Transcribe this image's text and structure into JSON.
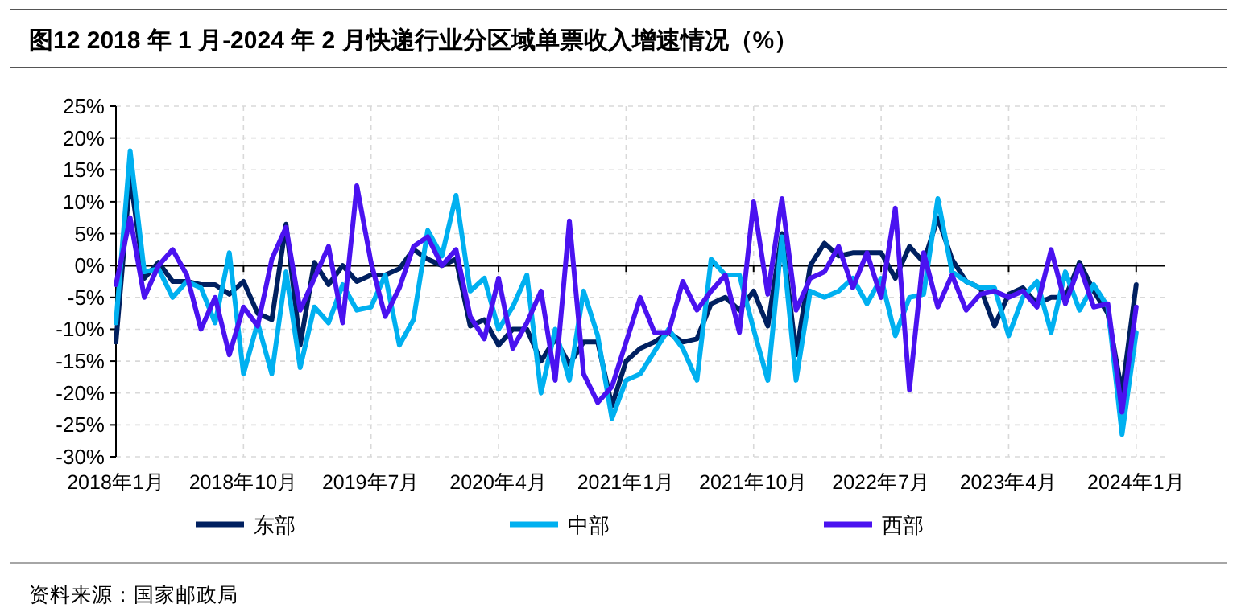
{
  "chart_data": {
    "type": "line",
    "title": "图12 2018 年 1 月-2024 年 2 月快递行业分区域单票收入增速情况（%）",
    "x": [
      "2018-01",
      "2018-02",
      "2018-03",
      "2018-04",
      "2018-05",
      "2018-06",
      "2018-07",
      "2018-08",
      "2018-09",
      "2018-10",
      "2018-11",
      "2018-12",
      "2019-01",
      "2019-02",
      "2019-03",
      "2019-04",
      "2019-05",
      "2019-06",
      "2019-07",
      "2019-08",
      "2019-09",
      "2019-10",
      "2019-11",
      "2019-12",
      "2020-01",
      "2020-02",
      "2020-03",
      "2020-04",
      "2020-05",
      "2020-06",
      "2020-07",
      "2020-08",
      "2020-09",
      "2020-10",
      "2020-11",
      "2020-12",
      "2021-01",
      "2021-02",
      "2021-03",
      "2021-04",
      "2021-05",
      "2021-06",
      "2021-07",
      "2021-08",
      "2021-09",
      "2021-10",
      "2021-11",
      "2021-12",
      "2022-01",
      "2022-02",
      "2022-03",
      "2022-04",
      "2022-05",
      "2022-06",
      "2022-07",
      "2022-08",
      "2022-09",
      "2022-10",
      "2022-11",
      "2022-12",
      "2023-01",
      "2023-02",
      "2023-03",
      "2023-04",
      "2023-05",
      "2023-06",
      "2023-07",
      "2023-08",
      "2023-09",
      "2023-10",
      "2023-11",
      "2023-12",
      "2024-01"
    ],
    "series": [
      {
        "name": "东部",
        "color": "#002060",
        "values": [
          -12,
          14,
          -2,
          0.5,
          -2.5,
          -2.5,
          -3,
          -3,
          -4.5,
          -2.5,
          -7.5,
          -8.5,
          6.5,
          -12.5,
          0.5,
          -3,
          0,
          -2.5,
          -1.5,
          -1.5,
          -0.5,
          2.5,
          1,
          0,
          1,
          -9.5,
          -8.5,
          -12.5,
          -10,
          -10,
          -15,
          -11.5,
          -15.5,
          -12,
          -12,
          -22,
          -15,
          -13,
          -12,
          -10.5,
          -12,
          -11.5,
          -6,
          -5,
          -7,
          -4,
          -9.5,
          5,
          -14,
          0,
          3.5,
          1.5,
          2,
          2,
          2,
          -2,
          3,
          0.5,
          7.5,
          1,
          -2.5,
          -3.5,
          -9.5,
          -4.5,
          -3.5,
          -6,
          -5,
          -5,
          0.5,
          -4,
          -7.5,
          -20,
          -3
        ]
      },
      {
        "name": "中部",
        "color": "#00b0f0",
        "values": [
          -9,
          18,
          -1,
          -0.5,
          -5,
          -2.5,
          -3.5,
          -9,
          2,
          -17,
          -9,
          -17,
          -1,
          -16,
          -6.5,
          -9,
          -3,
          -7,
          -6.5,
          -1.5,
          -12.5,
          -8.5,
          5.5,
          1.5,
          11,
          -4,
          -2,
          -10,
          -6.5,
          -1.5,
          -20,
          -10,
          -18,
          -4,
          -11,
          -24,
          -18,
          -17,
          -13.5,
          -10,
          -13,
          -18,
          1,
          -1.5,
          -1.5,
          -10,
          -18,
          4.5,
          -18,
          -4,
          -5,
          -4,
          -2,
          -6,
          -2,
          -11,
          -5,
          -4.5,
          10.5,
          -1,
          -2.5,
          -3.5,
          -3.5,
          -11,
          -5,
          -2.5,
          -10.5,
          -1,
          -7,
          -3,
          -6.5,
          -26.5,
          -10.5
        ]
      },
      {
        "name": "西部",
        "color": "#4a12f0",
        "values": [
          -3,
          7.5,
          -5,
          0,
          2.5,
          -1.5,
          -10,
          -5,
          -14,
          -6.5,
          -9.5,
          1,
          6,
          -7,
          -2,
          3,
          -9,
          12.5,
          0.5,
          -8,
          -3.5,
          3,
          4.5,
          0,
          2.5,
          -8,
          -11.5,
          -2,
          -13,
          -9,
          -4,
          -18,
          7,
          -17,
          -21.5,
          -19,
          -12,
          -5,
          -10.5,
          -10.5,
          -2.5,
          -7,
          -4,
          -1.5,
          -10.5,
          10,
          -4.5,
          10.5,
          -7,
          -2,
          -1,
          3,
          -3.5,
          2,
          -5,
          9,
          -19.5,
          2,
          -6.5,
          -1.5,
          -7,
          -4.5,
          -4,
          -5,
          -4,
          -6.5,
          2.5,
          -6,
          0,
          -6.5,
          -6,
          -23,
          -6.5
        ]
      }
    ],
    "xlim": [
      "2018-01",
      "2024-03"
    ],
    "xticks": [
      {
        "value": "2018-01",
        "label": "2018年1月"
      },
      {
        "value": "2018-10",
        "label": "2018年10月"
      },
      {
        "value": "2019-07",
        "label": "2019年7月"
      },
      {
        "value": "2020-04",
        "label": "2020年4月"
      },
      {
        "value": "2021-01",
        "label": "2021年1月"
      },
      {
        "value": "2021-10",
        "label": "2021年10月"
      },
      {
        "value": "2022-07",
        "label": "2022年7月"
      },
      {
        "value": "2023-04",
        "label": "2023年4月"
      },
      {
        "value": "2024-01",
        "label": "2024年1月"
      }
    ],
    "ylim": [
      -30,
      25
    ],
    "yticks": [
      {
        "value": -30,
        "label": "-30%"
      },
      {
        "value": -25,
        "label": "-25%"
      },
      {
        "value": -20,
        "label": "-20%"
      },
      {
        "value": -15,
        "label": "-15%"
      },
      {
        "value": -10,
        "label": "-10%"
      },
      {
        "value": -5,
        "label": "-5%"
      },
      {
        "value": 0,
        "label": "0%"
      },
      {
        "value": 5,
        "label": "5%"
      },
      {
        "value": 10,
        "label": "10%"
      },
      {
        "value": 15,
        "label": "15%"
      },
      {
        "value": 20,
        "label": "20%"
      },
      {
        "value": 25,
        "label": "25%"
      }
    ],
    "grid": true,
    "legend": "bottom",
    "line_style": "solid",
    "annotations": [
      "资料来源：国家邮政局"
    ]
  }
}
